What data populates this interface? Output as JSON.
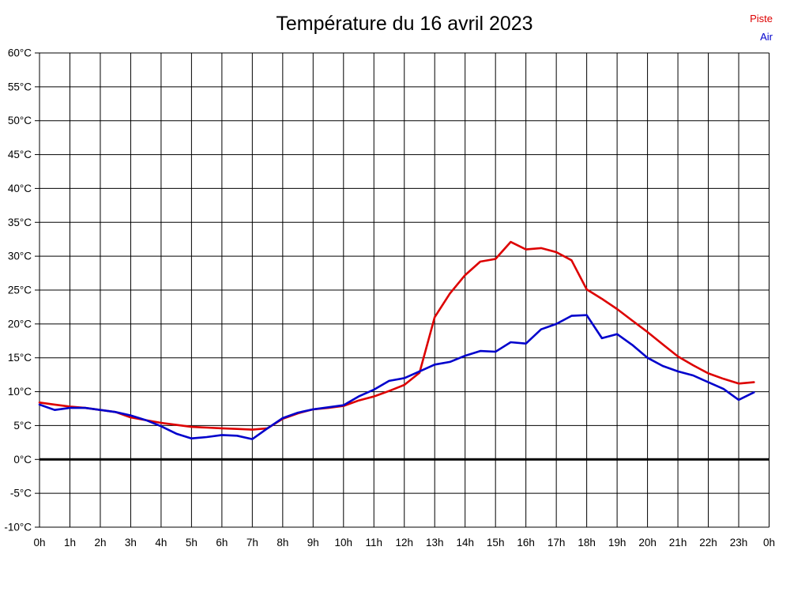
{
  "title": "Température du 16 avril 2023",
  "legend": {
    "piste_label": "Piste",
    "air_label": "Air"
  },
  "chart_data": {
    "type": "line",
    "title": "Température du 16 avril 2023",
    "xlabel": "",
    "ylabel": "",
    "ylim": [
      -10,
      60
    ],
    "xlim_hours": [
      0,
      24
    ],
    "grid": true,
    "zero_line_value": 0,
    "legend_position": "top-right",
    "x_tick_hours": [
      0,
      1,
      2,
      3,
      4,
      5,
      6,
      7,
      8,
      9,
      10,
      11,
      12,
      13,
      14,
      15,
      16,
      17,
      18,
      19,
      20,
      21,
      22,
      23,
      24
    ],
    "x_tick_labels": [
      "0h",
      "1h",
      "2h",
      "3h",
      "4h",
      "5h",
      "6h",
      "7h",
      "8h",
      "9h",
      "10h",
      "11h",
      "12h",
      "13h",
      "14h",
      "15h",
      "16h",
      "17h",
      "18h",
      "19h",
      "20h",
      "21h",
      "22h",
      "23h",
      "0h"
    ],
    "y_tick_values": [
      60,
      55,
      50,
      45,
      40,
      35,
      30,
      25,
      20,
      15,
      10,
      5,
      0,
      -5,
      -10
    ],
    "y_tick_labels": [
      "60°C",
      "55°C",
      "50°C",
      "45°C",
      "40°C",
      "35°C",
      "30°C",
      "25°C",
      "20°C",
      "15°C",
      "10°C",
      "5°C",
      "0°C",
      "-5°C",
      "-10°C"
    ],
    "x": [
      0,
      0.5,
      1,
      1.5,
      2,
      2.5,
      3,
      3.5,
      4,
      4.5,
      5,
      5.5,
      6,
      6.5,
      7,
      7.5,
      8,
      8.5,
      9,
      9.5,
      10,
      10.5,
      11,
      11.5,
      12,
      12.5,
      13,
      13.5,
      14,
      14.5,
      15,
      15.5,
      16,
      16.5,
      17,
      17.5,
      18,
      18.5,
      19,
      19.5,
      20,
      20.5,
      21,
      21.5,
      22,
      22.5,
      23,
      23.5
    ],
    "series": [
      {
        "name": "Piste",
        "color": "#dd0000",
        "values": [
          8.4,
          8.1,
          7.8,
          7.6,
          7.3,
          7.0,
          6.2,
          5.8,
          5.4,
          5.1,
          4.8,
          4.7,
          4.6,
          4.5,
          4.4,
          4.6,
          6.0,
          6.8,
          7.4,
          7.6,
          7.9,
          8.7,
          9.3,
          10.1,
          11.0,
          12.8,
          21.0,
          24.5,
          27.2,
          29.2,
          29.6,
          32.1,
          31.0,
          31.2,
          30.6,
          29.4,
          25.1,
          23.7,
          22.2,
          20.5,
          18.8,
          17.0,
          15.2,
          13.9,
          12.7,
          11.9,
          11.2,
          11.4
        ]
      },
      {
        "name": "Air",
        "color": "#0000cc",
        "values": [
          8.1,
          7.3,
          7.6,
          7.6,
          7.3,
          7.0,
          6.5,
          5.8,
          4.9,
          3.8,
          3.1,
          3.3,
          3.6,
          3.5,
          3.0,
          4.6,
          6.1,
          6.9,
          7.4,
          7.7,
          8.0,
          9.3,
          10.3,
          11.6,
          12.0,
          13.0,
          14.0,
          14.4,
          15.3,
          16.0,
          15.9,
          17.3,
          17.1,
          19.2,
          20.0,
          21.2,
          21.3,
          17.9,
          18.5,
          16.9,
          15.0,
          13.8,
          13.0,
          12.4,
          11.4,
          10.4,
          8.8,
          9.9
        ]
      }
    ]
  },
  "colors": {
    "grid": "#000000",
    "zero_line": "#000000",
    "background": "#ffffff",
    "piste": "#dd0000",
    "air": "#0000cc"
  }
}
